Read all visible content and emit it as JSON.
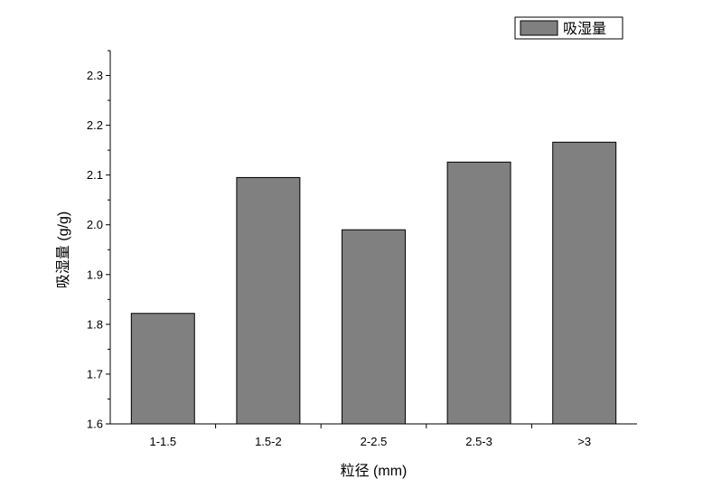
{
  "chart_data": {
    "type": "bar",
    "categories": [
      "1-1.5",
      "1.5-2",
      "2-2.5",
      "2.5-3",
      ">3"
    ],
    "series": [
      {
        "name": "吸湿量",
        "values": [
          1.822,
          2.095,
          1.99,
          2.126,
          2.166
        ]
      }
    ],
    "xlabel": "粒径 (mm)",
    "ylabel": "吸湿量 (g/g)",
    "ylim": [
      1.6,
      2.35
    ],
    "yticks": [
      "1.6",
      "1.7",
      "1.8",
      "1.9",
      "2.0",
      "2.1",
      "2.2",
      "2.3"
    ],
    "legend_position": "top-right",
    "grid": false,
    "bar_color": "#808080",
    "bar_edge_color": "#000000"
  }
}
